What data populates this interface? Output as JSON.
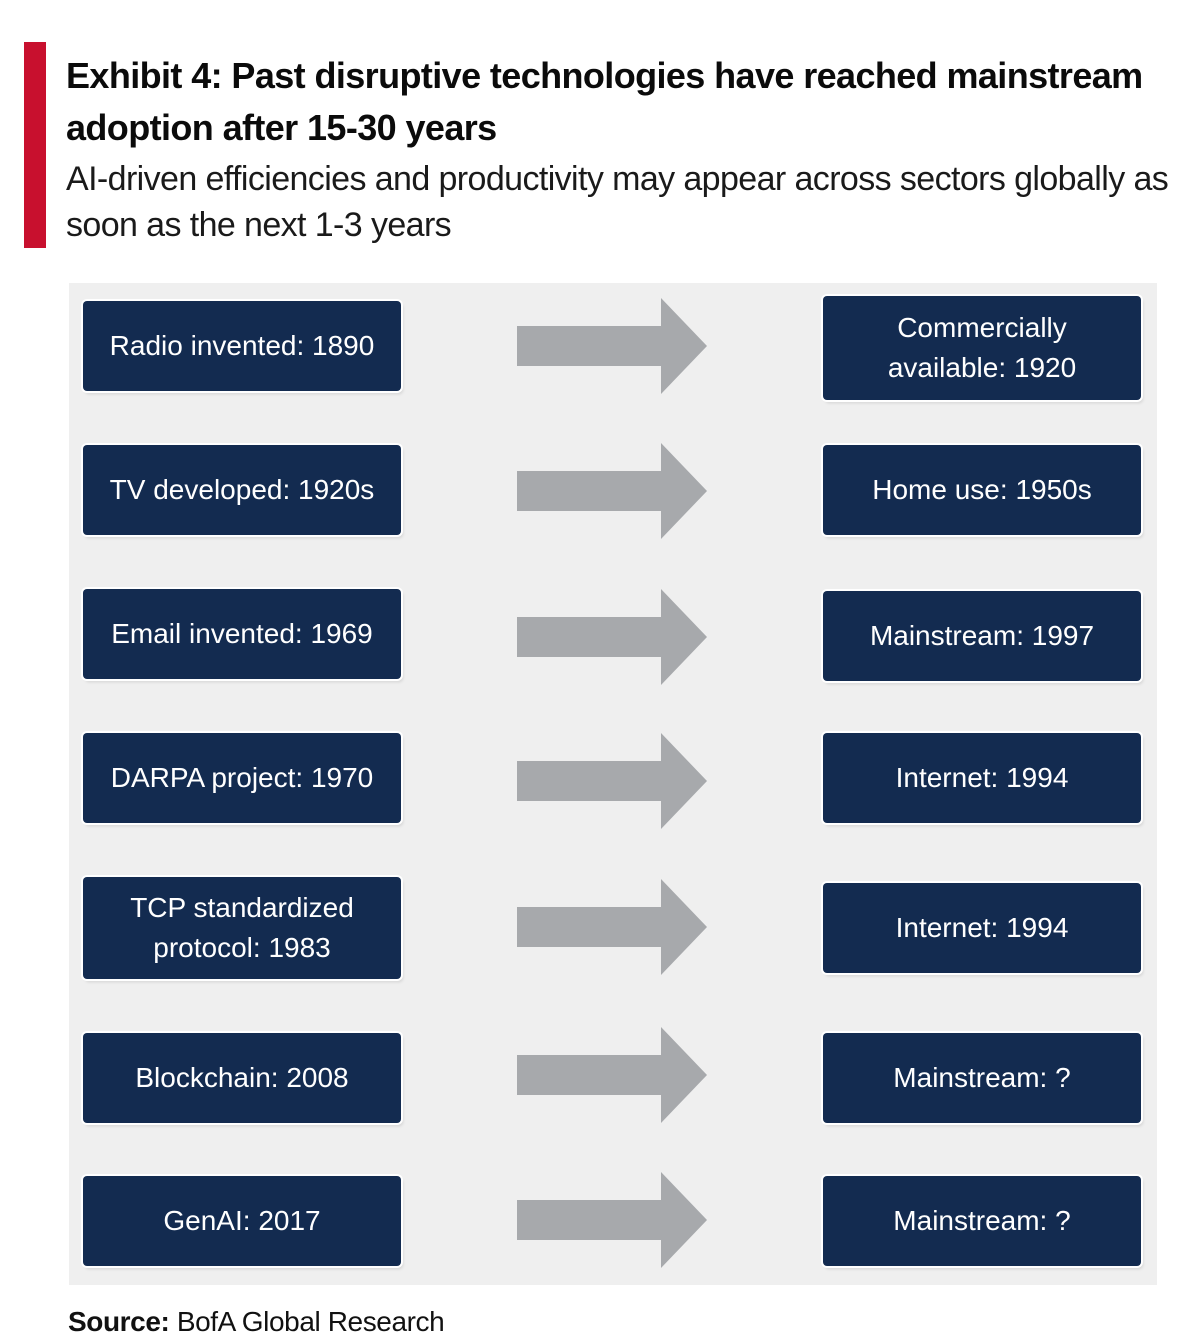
{
  "header": {
    "title": "Exhibit 4: Past disruptive technologies have reached mainstream adoption after 15-30 years",
    "subtitle": "AI-driven efficiencies and productivity may appear across sectors globally as soon as the next 1-3 years",
    "accent_color": "#c8102e"
  },
  "diagram": {
    "box_color": "#132b50",
    "arrow_color": "#a7a9ac",
    "background_color": "#efefef",
    "rows": [
      {
        "left": "Radio invented: 1890",
        "right": "Commercially available: 1920"
      },
      {
        "left": "TV developed: 1920s",
        "right": "Home use: 1950s"
      },
      {
        "left": "Email invented: 1969",
        "right": "Mainstream: 1997"
      },
      {
        "left": "DARPA project: 1970",
        "right": "Internet: 1994"
      },
      {
        "left": "TCP standardized protocol: 1983",
        "right": "Internet: 1994"
      },
      {
        "left": "Blockchain: 2008",
        "right": "Mainstream: ?"
      },
      {
        "left": "GenAI: 2017",
        "right": "Mainstream: ?"
      }
    ]
  },
  "footer": {
    "source_label": "Source:",
    "source_text": "BofA Global Research"
  }
}
